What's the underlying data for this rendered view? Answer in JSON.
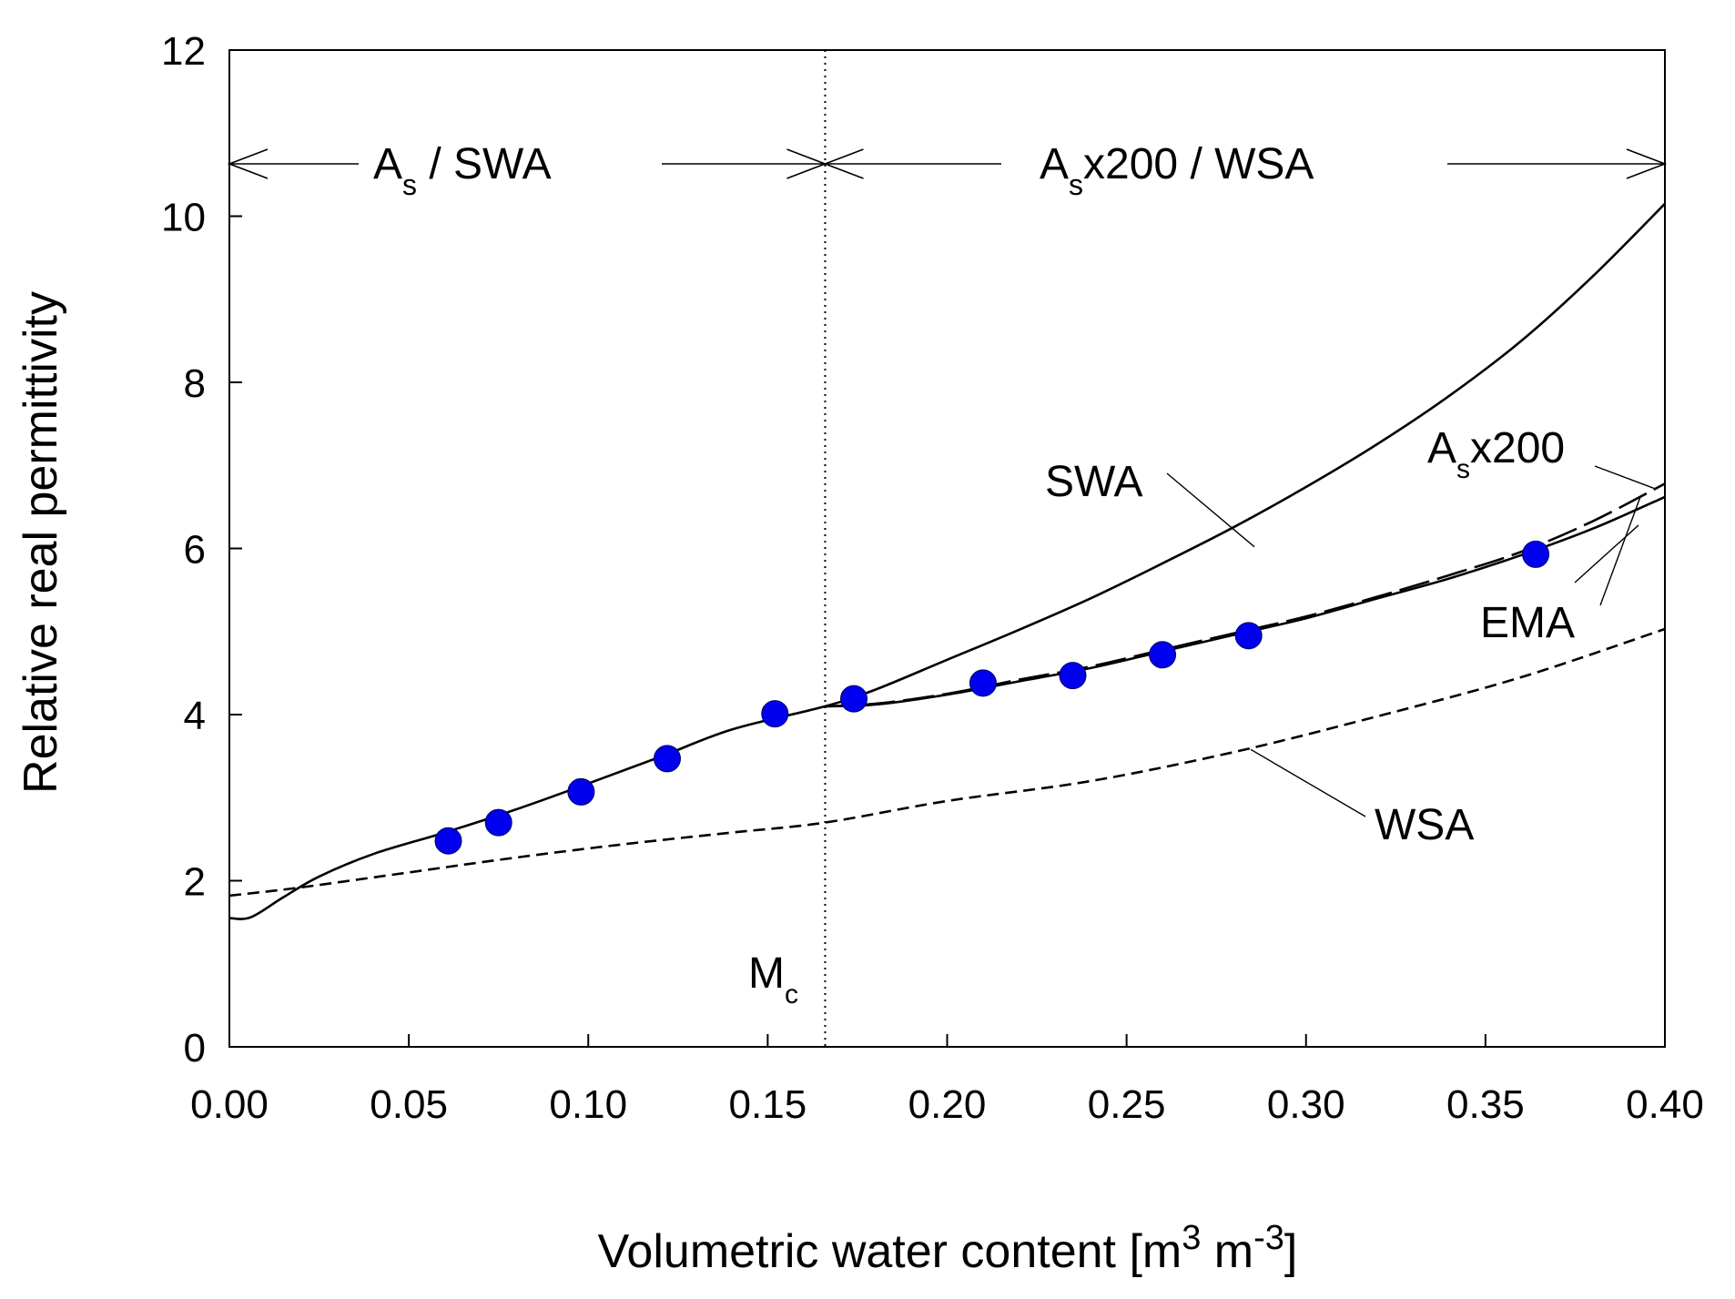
{
  "chart_data": {
    "type": "line",
    "title": "",
    "xlabel": "Volumetric water content",
    "xlabel_unit": "[m3 m-3]",
    "xlabel_unit_parts": [
      "[m",
      "3",
      " m",
      "-3",
      "]"
    ],
    "ylabel": "Relative real permittivity",
    "xlim": [
      0.0,
      0.4
    ],
    "ylim": [
      0,
      12
    ],
    "x_ticks": [
      0.0,
      0.05,
      0.1,
      0.15,
      0.2,
      0.25,
      0.3,
      0.35,
      0.4
    ],
    "x_tick_labels": [
      "0.00",
      "0.05",
      "0.10",
      "0.15",
      "0.20",
      "0.25",
      "0.30",
      "0.35",
      "0.40"
    ],
    "y_ticks": [
      0,
      2,
      4,
      6,
      8,
      10,
      12
    ],
    "y_tick_labels": [
      "0",
      "2",
      "4",
      "6",
      "8",
      "10",
      "12"
    ],
    "grid": false,
    "vertical_line": {
      "x": 0.166,
      "label": "Mc",
      "label_parts": [
        "M",
        "c"
      ],
      "style": "dotted"
    },
    "region_labels": {
      "left": {
        "text": "As / SWA",
        "parts": [
          "A",
          "s",
          " / SWA"
        ],
        "x_range": [
          0.0,
          0.166
        ]
      },
      "right": {
        "text": "Asx200 / WSA",
        "parts": [
          "A",
          "s",
          "x200 / WSA"
        ],
        "x_range": [
          0.166,
          0.4
        ]
      }
    },
    "curve_labels": {
      "SWA": "SWA",
      "WSA": "WSA",
      "EMA": "EMA",
      "Asx200_parts": [
        "A",
        "s",
        "x200"
      ]
    },
    "scatter": {
      "color": "#0000ee",
      "points": [
        {
          "x": 0.061,
          "y": 2.48
        },
        {
          "x": 0.075,
          "y": 2.7
        },
        {
          "x": 0.098,
          "y": 3.07
        },
        {
          "x": 0.122,
          "y": 3.47
        },
        {
          "x": 0.152,
          "y": 4.01
        },
        {
          "x": 0.174,
          "y": 4.19
        },
        {
          "x": 0.21,
          "y": 4.38
        },
        {
          "x": 0.235,
          "y": 4.47
        },
        {
          "x": 0.26,
          "y": 4.72
        },
        {
          "x": 0.284,
          "y": 4.95
        },
        {
          "x": 0.364,
          "y": 5.93
        }
      ]
    },
    "series": [
      {
        "key": "SWA",
        "style": "solid",
        "points": [
          [
            0.0,
            1.55
          ],
          [
            0.006,
            1.56
          ],
          [
            0.015,
            1.8
          ],
          [
            0.025,
            2.05
          ],
          [
            0.04,
            2.32
          ],
          [
            0.06,
            2.58
          ],
          [
            0.08,
            2.86
          ],
          [
            0.1,
            3.17
          ],
          [
            0.12,
            3.49
          ],
          [
            0.14,
            3.82
          ],
          [
            0.166,
            4.1
          ],
          [
            0.18,
            4.3
          ],
          [
            0.2,
            4.66
          ],
          [
            0.22,
            5.02
          ],
          [
            0.24,
            5.4
          ],
          [
            0.26,
            5.82
          ],
          [
            0.28,
            6.26
          ],
          [
            0.3,
            6.74
          ],
          [
            0.32,
            7.26
          ],
          [
            0.34,
            7.84
          ],
          [
            0.36,
            8.5
          ],
          [
            0.38,
            9.28
          ],
          [
            0.4,
            10.15
          ]
        ]
      },
      {
        "key": "WSA",
        "style": "dashed",
        "points": [
          [
            0.0,
            1.82
          ],
          [
            0.02,
            1.92
          ],
          [
            0.05,
            2.1
          ],
          [
            0.08,
            2.28
          ],
          [
            0.11,
            2.44
          ],
          [
            0.14,
            2.58
          ],
          [
            0.166,
            2.7
          ],
          [
            0.2,
            2.96
          ],
          [
            0.24,
            3.2
          ],
          [
            0.28,
            3.55
          ],
          [
            0.32,
            3.98
          ],
          [
            0.36,
            4.45
          ],
          [
            0.4,
            5.03
          ]
        ]
      },
      {
        "key": "Asx200",
        "style": "long-dashed",
        "points": [
          [
            0.166,
            4.1
          ],
          [
            0.18,
            4.13
          ],
          [
            0.2,
            4.25
          ],
          [
            0.22,
            4.42
          ],
          [
            0.24,
            4.58
          ],
          [
            0.26,
            4.78
          ],
          [
            0.28,
            4.98
          ],
          [
            0.3,
            5.18
          ],
          [
            0.32,
            5.42
          ],
          [
            0.34,
            5.68
          ],
          [
            0.36,
            5.96
          ],
          [
            0.38,
            6.33
          ],
          [
            0.4,
            6.78
          ]
        ]
      },
      {
        "key": "EMA",
        "style": "solid",
        "points": [
          [
            0.166,
            4.1
          ],
          [
            0.18,
            4.12
          ],
          [
            0.2,
            4.24
          ],
          [
            0.22,
            4.4
          ],
          [
            0.24,
            4.56
          ],
          [
            0.26,
            4.76
          ],
          [
            0.28,
            4.96
          ],
          [
            0.3,
            5.16
          ],
          [
            0.32,
            5.4
          ],
          [
            0.34,
            5.64
          ],
          [
            0.36,
            5.92
          ],
          [
            0.38,
            6.24
          ],
          [
            0.4,
            6.62
          ]
        ]
      }
    ]
  }
}
